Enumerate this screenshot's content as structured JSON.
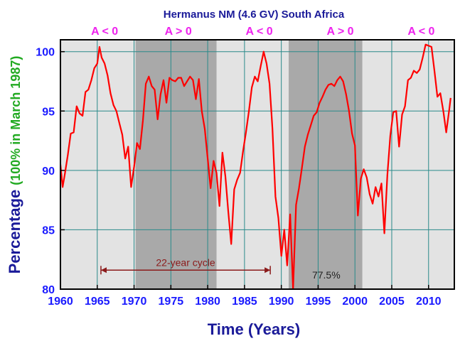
{
  "chart_data": {
    "type": "line",
    "title": "Hermanus NM (4.6 GV) South Africa",
    "xlabel": "Time (Years)",
    "ylabel_main": "Percentage",
    "ylabel_sub": "(100% in March 1987)",
    "xlim": [
      1960,
      2013.5
    ],
    "ylim": [
      80,
      101
    ],
    "x_ticks": [
      "1960",
      "1965",
      "1970",
      "1975",
      "1980",
      "1985",
      "1990",
      "1995",
      "2000",
      "2005",
      "2010"
    ],
    "y_ticks": [
      "80",
      "85",
      "90",
      "95",
      "100"
    ],
    "grid": true,
    "line_color": "#ff0000",
    "shaded_periods": [
      {
        "start": 1970.2,
        "end": 1981.2,
        "label": "A > 0"
      },
      {
        "start": 1991.0,
        "end": 2001.0,
        "label": "A > 0"
      }
    ],
    "phase_labels": [
      {
        "x": 1966,
        "label": "A < 0"
      },
      {
        "x": 1976,
        "label": "A > 0"
      },
      {
        "x": 1987,
        "label": "A < 0"
      },
      {
        "x": 1998,
        "label": "A > 0"
      },
      {
        "x": 2009,
        "label": "A < 0"
      }
    ],
    "annotations": [
      {
        "text": "22-year cycle",
        "x_start": 1965.5,
        "x_end": 1988.5,
        "y": 81.6
      },
      {
        "text": "77.5%",
        "x": 1996.1,
        "y": 80.9
      }
    ],
    "series": [
      {
        "x": [
          1960.0,
          1960.3,
          1960.6,
          1961.0,
          1961.4,
          1961.8,
          1962.2,
          1962.6,
          1963.0,
          1963.4,
          1963.8,
          1964.2,
          1964.6,
          1965.0,
          1965.3,
          1965.6,
          1966.0,
          1966.4,
          1966.8,
          1967.2,
          1967.6,
          1968.0,
          1968.4,
          1968.8,
          1969.2,
          1969.6,
          1970.0,
          1970.4,
          1970.8,
          1971.2,
          1971.6,
          1972.0,
          1972.4,
          1972.8,
          1973.2,
          1973.6,
          1974.0,
          1974.4,
          1974.8,
          1975.2,
          1975.6,
          1976.0,
          1976.4,
          1976.8,
          1977.2,
          1977.6,
          1978.0,
          1978.4,
          1978.8,
          1979.2,
          1979.6,
          1980.0,
          1980.4,
          1980.8,
          1981.2,
          1981.6,
          1982.0,
          1982.4,
          1982.8,
          1983.2,
          1983.6,
          1984.0,
          1984.4,
          1984.8,
          1985.2,
          1985.6,
          1986.0,
          1986.4,
          1986.8,
          1987.2,
          1987.6,
          1988.0,
          1988.4,
          1988.8,
          1989.2,
          1989.6,
          1990.0,
          1990.4,
          1990.8,
          1991.2,
          1991.6,
          1992.0,
          1992.4,
          1992.8,
          1993.2,
          1993.6,
          1994.0,
          1994.4,
          1994.8,
          1995.2,
          1995.6,
          1996.0,
          1996.4,
          1996.8,
          1997.2,
          1997.6,
          1998.0,
          1998.4,
          1998.8,
          1999.2,
          1999.6,
          2000.0,
          2000.4,
          2000.8,
          2001.2,
          2001.6,
          2002.0,
          2002.4,
          2002.8,
          2003.2,
          2003.6,
          2004.0,
          2004.4,
          2004.8,
          2005.2,
          2005.6,
          2006.0,
          2006.4,
          2006.8,
          2007.2,
          2007.6,
          2008.0,
          2008.4,
          2008.8,
          2009.2,
          2009.6,
          2010.0,
          2010.4,
          2010.8,
          2011.2,
          2011.6,
          2012.0,
          2012.4,
          2012.8,
          2013.0
        ],
        "y": [
          90.5,
          88.6,
          89.7,
          91.3,
          93.1,
          93.2,
          95.4,
          94.8,
          94.6,
          96.6,
          96.8,
          97.6,
          98.6,
          99.0,
          100.4,
          99.5,
          99.0,
          98.0,
          96.5,
          95.5,
          95.0,
          94.0,
          93.0,
          91.0,
          92.0,
          88.6,
          90.3,
          92.3,
          91.8,
          94.2,
          97.3,
          97.9,
          97.1,
          96.8,
          94.3,
          96.4,
          97.6,
          95.7,
          97.8,
          97.6,
          97.5,
          97.8,
          97.8,
          97.1,
          97.5,
          97.9,
          97.6,
          96.0,
          97.7,
          95.0,
          93.5,
          91.0,
          88.5,
          90.8,
          89.8,
          87.0,
          91.5,
          89.5,
          86.5,
          83.8,
          88.4,
          89.2,
          89.8,
          91.6,
          93.2,
          95.0,
          97.0,
          97.9,
          97.5,
          98.8,
          100.0,
          99.0,
          97.3,
          93.5,
          87.8,
          86.0,
          82.8,
          85.0,
          82.0,
          86.3,
          80.0,
          87.1,
          88.5,
          90.2,
          92.0,
          93.0,
          93.8,
          94.6,
          94.9,
          95.7,
          96.2,
          96.8,
          97.2,
          97.3,
          97.1,
          97.6,
          97.9,
          97.5,
          96.4,
          95.0,
          93.1,
          92.1,
          86.2,
          89.3,
          90.1,
          89.4,
          88.0,
          87.2,
          88.6,
          87.8,
          88.9,
          84.7,
          89.6,
          92.9,
          94.9,
          95.0,
          92.0,
          94.7,
          95.4,
          97.6,
          97.8,
          98.4,
          98.2,
          98.5,
          99.5,
          100.6,
          100.5,
          100.4,
          98.4,
          96.2,
          96.5,
          95.0,
          93.2,
          95.1,
          96.1
        ]
      }
    ]
  }
}
